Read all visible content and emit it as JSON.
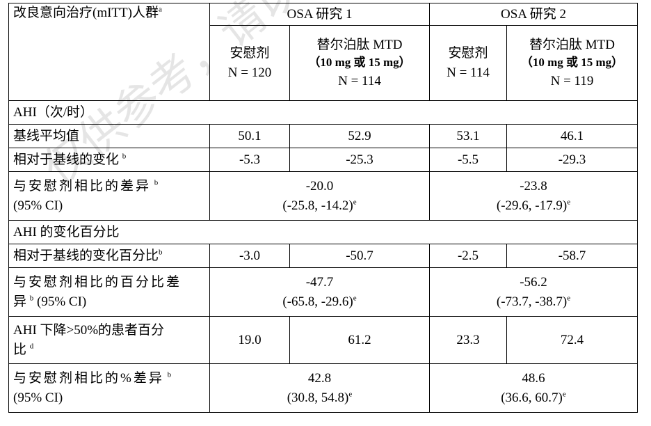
{
  "watermark": "仅供参考，请以",
  "header": {
    "population": "改良意向治疗(mITT)人群",
    "population_sup": "a",
    "study1": "OSA 研究 1",
    "study2": "OSA 研究 2",
    "placebo": "安慰剂",
    "drug": "替尔泊肽 MTD",
    "dose": "（10 mg 或 15 mg）",
    "n1_placebo": "N = 120",
    "n1_drug": "N = 114",
    "n2_placebo": "N = 114",
    "n2_drug": "N = 119"
  },
  "ahi": {
    "section": "AHI（次/时）",
    "baseline_label": "基线平均值",
    "baseline": [
      "50.1",
      "52.9",
      "53.1",
      "46.1"
    ],
    "change_label": "相对于基线的变化",
    "change_sup": "b",
    "change": [
      "-5.3",
      "-25.3",
      "-5.5",
      "-29.3"
    ],
    "diff_label_1": "与安慰剂相比的差异",
    "diff_sup": "b",
    "diff_label_2": "(95% CI)",
    "diff1": "-20.0",
    "ci1": "(-25.8, -14.2)",
    "diff2": "-23.8",
    "ci2": "(-29.6, -17.9)",
    "ci_sup": "e"
  },
  "pct": {
    "section": "AHI 的变化百分比",
    "change_label": "相对于基线的变化百分比",
    "change_sup": "b",
    "change": [
      "-3.0",
      "-50.7",
      "-2.5",
      "-58.7"
    ],
    "diff_label_1": "与安慰剂相比的百分比差",
    "diff_label_2a": "异",
    "diff_sup": "b",
    "diff_label_2b": "(95% CI)",
    "diff1": "-47.7",
    "ci1": "(-65.8, -29.6)",
    "diff2": "-56.2",
    "ci2": "(-73.7, -38.7)",
    "ci_sup": "e"
  },
  "resp": {
    "label_1": "AHI 下降>50%的患者百分",
    "label_2": "比",
    "label_sup": "d",
    "values": [
      "19.0",
      "61.2",
      "23.3",
      "72.4"
    ],
    "diff_label_1": "与安慰剂相比的%差异",
    "diff_sup": "b",
    "diff_label_2": "(95% CI)",
    "diff1": "42.8",
    "ci1": "(30.8, 54.8)",
    "diff2": "48.6",
    "ci2": "(36.6, 60.7)",
    "ci_sup": "e"
  }
}
